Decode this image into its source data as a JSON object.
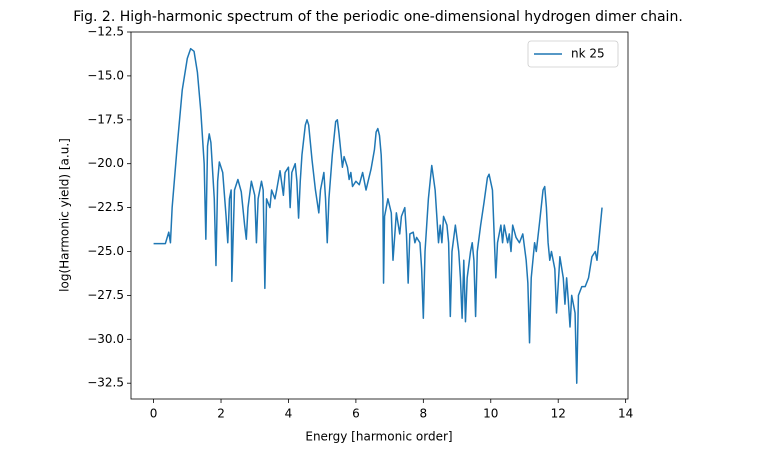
{
  "chart_data": {
    "type": "line",
    "title": "Fig. 2. High-harmonic spectrum of the periodic one-dimensional hydrogen dimer chain.",
    "x_label": "Energy [harmonic order]",
    "y_label": "log(Harmonic yield) [a.u.]",
    "xlim": [
      -0.67,
      14.07
    ],
    "ylim": [
      -33.4,
      -12.5
    ],
    "xticks": [
      0,
      2,
      4,
      6,
      8,
      10,
      12,
      14
    ],
    "yticks": [
      {
        "value": -32.5,
        "label": "−32.5"
      },
      {
        "value": -30.0,
        "label": "−30.0"
      },
      {
        "value": -27.5,
        "label": "−27.5"
      },
      {
        "value": -25.0,
        "label": "−25.0"
      },
      {
        "value": -22.5,
        "label": "−22.5"
      },
      {
        "value": -20.0,
        "label": "−20.0"
      },
      {
        "value": -17.5,
        "label": "−17.5"
      },
      {
        "value": -15.0,
        "label": "−15.0"
      },
      {
        "value": -12.5,
        "label": "−12.5"
      }
    ],
    "legend": "upper right",
    "grid": false,
    "series": [
      {
        "name": "nk 25",
        "color": "#1f77b4",
        "x": [
          0,
          0.35,
          0.45,
          0.5,
          0.55,
          0.7,
          0.85,
          1.0,
          1.1,
          1.2,
          1.3,
          1.4,
          1.5,
          1.55,
          1.6,
          1.65,
          1.7,
          1.8,
          1.85,
          1.9,
          1.95,
          2.05,
          2.15,
          2.2,
          2.25,
          2.3,
          2.32,
          2.4,
          2.5,
          2.6,
          2.7,
          2.75,
          2.8,
          2.9,
          3.0,
          3.05,
          3.1,
          3.2,
          3.25,
          3.3,
          3.35,
          3.45,
          3.5,
          3.6,
          3.65,
          3.75,
          3.85,
          3.9,
          4.0,
          4.05,
          4.1,
          4.2,
          4.25,
          4.3,
          4.35,
          4.4,
          4.5,
          4.55,
          4.6,
          4.7,
          4.8,
          4.9,
          4.95,
          5.05,
          5.1,
          5.15,
          5.2,
          5.3,
          5.4,
          5.45,
          5.5,
          5.6,
          5.65,
          5.75,
          5.8,
          5.85,
          5.9,
          6.0,
          6.1,
          6.2,
          6.3,
          6.45,
          6.55,
          6.6,
          6.65,
          6.7,
          6.75,
          6.8,
          6.82,
          6.85,
          6.95,
          7.05,
          7.1,
          7.2,
          7.3,
          7.35,
          7.45,
          7.5,
          7.55,
          7.6,
          7.7,
          7.75,
          7.8,
          7.9,
          7.95,
          8.0,
          8.05,
          8.15,
          8.25,
          8.35,
          8.45,
          8.5,
          8.55,
          8.6,
          8.7,
          8.75,
          8.8,
          8.85,
          8.95,
          9.05,
          9.1,
          9.15,
          9.2,
          9.25,
          9.3,
          9.4,
          9.45,
          9.5,
          9.55,
          9.6,
          9.7,
          9.8,
          9.9,
          9.95,
          10.05,
          10.1,
          10.15,
          10.2,
          10.3,
          10.35,
          10.4,
          10.5,
          10.55,
          10.6,
          10.65,
          10.75,
          10.85,
          10.95,
          11.05,
          11.1,
          11.15,
          11.2,
          11.3,
          11.35,
          11.45,
          11.55,
          11.6,
          11.65,
          11.7,
          11.75,
          11.8,
          11.9,
          11.95,
          12.05,
          12.15,
          12.2,
          12.25,
          12.3,
          12.35,
          12.4,
          12.5,
          12.55,
          12.6,
          12.7,
          12.8,
          12.9,
          13.0,
          13.1,
          13.15,
          13.2,
          13.3
        ],
        "values": [
          -24.55,
          -24.55,
          -23.9,
          -24.5,
          -22.5,
          -19,
          -15.8,
          -14.0,
          -13.45,
          -13.6,
          -14.8,
          -17,
          -20,
          -24.3,
          -19,
          -18.3,
          -18.8,
          -22,
          -25.8,
          -21,
          -19.9,
          -20.5,
          -23,
          -24.5,
          -22,
          -21.5,
          -26.7,
          -21.5,
          -20.9,
          -21.6,
          -23.5,
          -24.3,
          -22.5,
          -21.0,
          -21.8,
          -24.5,
          -22,
          -21,
          -21.5,
          -27.1,
          -22,
          -22.5,
          -21.5,
          -22,
          -21.5,
          -20.4,
          -21.8,
          -20.5,
          -20.2,
          -22.5,
          -20.5,
          -20,
          -21,
          -23.1,
          -21,
          -19.5,
          -17.8,
          -17.5,
          -17.8,
          -19.8,
          -21.5,
          -22.8,
          -21.5,
          -20.5,
          -22,
          -24.5,
          -22,
          -19.5,
          -17.6,
          -17.5,
          -18.3,
          -20.2,
          -19.6,
          -20.2,
          -20.9,
          -20.5,
          -21.3,
          -21.0,
          -21.2,
          -20.5,
          -21.5,
          -20.3,
          -19.2,
          -18.2,
          -18.0,
          -18.4,
          -19.5,
          -22,
          -26.8,
          -23,
          -22,
          -22.8,
          -25.5,
          -22.8,
          -24,
          -23,
          -22.5,
          -24,
          -26.8,
          -24,
          -23.9,
          -24.5,
          -24.2,
          -24.5,
          -26,
          -28.8,
          -25,
          -22,
          -20.1,
          -21.5,
          -24.5,
          -23.5,
          -24.5,
          -23,
          -23.5,
          -24.5,
          -28.7,
          -25,
          -23.5,
          -25,
          -26.5,
          -28.8,
          -25.5,
          -29,
          -26.5,
          -25,
          -24.5,
          -25.5,
          -28.7,
          -25,
          -23.5,
          -22.2,
          -20.8,
          -20.6,
          -21.5,
          -24,
          -26.5,
          -24.5,
          -23.5,
          -24.5,
          -23.5,
          -24.5,
          -24,
          -25,
          -23.5,
          -24.2,
          -24.5,
          -24,
          -25.5,
          -26.8,
          -30.2,
          -26.5,
          -24.5,
          -25,
          -23.3,
          -21.5,
          -21.3,
          -22.5,
          -24.5,
          -25.5,
          -25,
          -26,
          -28.5,
          -25.3,
          -26.5,
          -28,
          -26.5,
          -27.8,
          -29.3,
          -27.5,
          -28.5,
          -32.5,
          -27.5,
          -27,
          -27,
          -26.5,
          -25.3,
          -25,
          -25.5,
          -24.5,
          -22.5
        ]
      }
    ]
  }
}
